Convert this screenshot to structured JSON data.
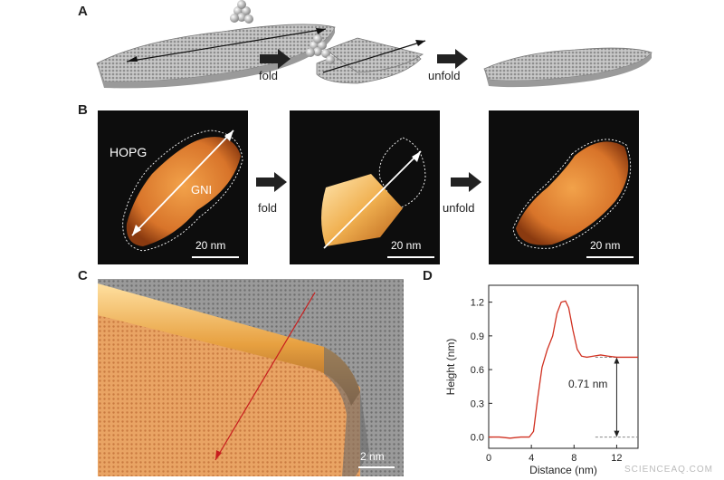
{
  "panels": {
    "a": {
      "letter": "A",
      "fold_label": "fold",
      "unfold_label": "unfold"
    },
    "b": {
      "letter": "B",
      "hopg_label": "HOPG",
      "gni_label": "GNI",
      "fold_label": "fold",
      "unfold_label": "unfold",
      "scale_labels": [
        "20 nm",
        "20 nm",
        "20 nm"
      ]
    },
    "c": {
      "letter": "C",
      "scale_label": "2 nm"
    },
    "d": {
      "letter": "D",
      "annotation": "0.71 nm"
    }
  },
  "chart_data": {
    "type": "line",
    "xlabel": "Distance (nm)",
    "ylabel": "Height (nm)",
    "xlim": [
      0,
      14
    ],
    "ylim": [
      -0.1,
      1.35
    ],
    "xticks": [
      0,
      4,
      8,
      12
    ],
    "yticks": [
      0.0,
      0.3,
      0.6,
      0.9,
      1.2
    ],
    "ytick_labels": [
      "0.0",
      "0.3",
      "0.6",
      "0.9",
      "1.2"
    ],
    "series": [
      {
        "color": "#d03020",
        "x": [
          0,
          1,
          2,
          3,
          3.8,
          4.2,
          4.6,
          5.0,
          5.5,
          6.0,
          6.4,
          6.8,
          7.2,
          7.5,
          7.9,
          8.3,
          8.7,
          9.2,
          9.8,
          10.5,
          11.2,
          12,
          13,
          14
        ],
        "y": [
          0.0,
          0.0,
          -0.01,
          0.0,
          0.0,
          0.05,
          0.35,
          0.62,
          0.78,
          0.9,
          1.1,
          1.2,
          1.21,
          1.15,
          0.95,
          0.78,
          0.72,
          0.71,
          0.72,
          0.73,
          0.72,
          0.71,
          0.71,
          0.71
        ]
      }
    ],
    "reference_lines": {
      "low": 0.0,
      "high": 0.71,
      "start": 10
    }
  },
  "watermark": "SCIENCEAQ.COM"
}
